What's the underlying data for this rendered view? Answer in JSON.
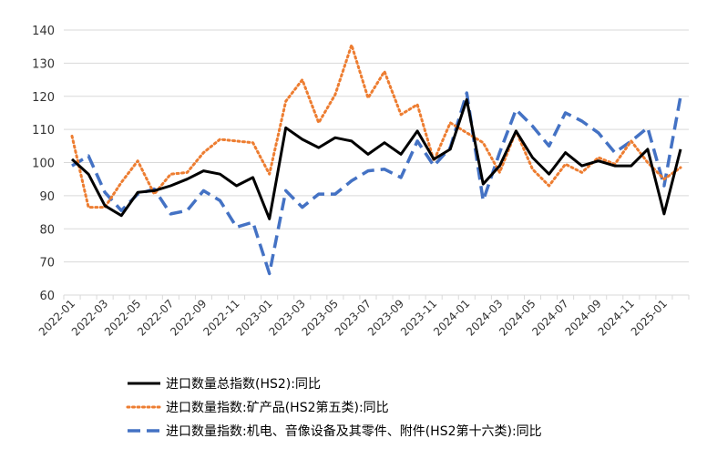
{
  "chart_data": {
    "type": "line",
    "title": "",
    "xlabel": "",
    "ylabel": "",
    "ylim": [
      60,
      140
    ],
    "yticks": [
      60,
      70,
      80,
      90,
      100,
      110,
      120,
      130,
      140
    ],
    "grid": "horizontal",
    "legend_position": "bottom",
    "x": [
      "2022-01",
      "2022-02",
      "2022-03",
      "2022-04",
      "2022-05",
      "2022-06",
      "2022-07",
      "2022-08",
      "2022-09",
      "2022-10",
      "2022-11",
      "2022-12",
      "2023-01",
      "2023-02",
      "2023-03",
      "2023-04",
      "2023-05",
      "2023-06",
      "2023-07",
      "2023-08",
      "2023-09",
      "2023-10",
      "2023-11",
      "2023-12",
      "2024-01",
      "2024-02",
      "2024-03",
      "2024-04",
      "2024-05",
      "2024-06",
      "2024-07",
      "2024-08",
      "2024-09",
      "2024-10",
      "2024-11",
      "2024-12",
      "2025-01",
      "2025-02"
    ],
    "xtick_labels": [
      "2022-01",
      "2022-03",
      "2022-05",
      "2022-07",
      "2022-09",
      "2022-11",
      "2023-01",
      "2023-03",
      "2023-05",
      "2023-07",
      "2023-09",
      "2023-11",
      "2024-01",
      "2024-03",
      "2024-05",
      "2024-07",
      "2024-09",
      "2024-11",
      "2025-01"
    ],
    "series": [
      {
        "name": "进口数量总指数(HS2):同比",
        "color": "#000000",
        "style": "solid",
        "values": [
          101,
          96.5,
          87,
          84,
          91,
          91.5,
          93,
          95,
          97.5,
          96.5,
          93,
          95.5,
          83,
          110.5,
          107,
          104.5,
          107.5,
          106.5,
          102.5,
          106,
          102.5,
          109.5,
          101,
          104,
          119,
          93.5,
          99,
          109.5,
          101.5,
          96.5,
          103,
          99,
          100.5,
          99,
          99,
          104,
          84.5,
          104
        ]
      },
      {
        "name": "进口数量指数:矿产品(HS2第五类):同比",
        "color": "#ed7d31",
        "style": "dotted",
        "values": [
          108,
          86.5,
          86.5,
          94,
          100.5,
          90.5,
          96.5,
          97,
          103,
          107,
          106.5,
          106,
          96.5,
          118.5,
          125,
          112,
          120.5,
          135.5,
          119.5,
          127.5,
          114.5,
          117.5,
          100.5,
          112,
          109,
          106,
          97,
          109.5,
          98,
          93,
          99.5,
          97,
          101.5,
          99.5,
          106.5,
          100,
          95,
          98.5
        ]
      },
      {
        "name": "进口数量指数:机电、音像设备及其零件、附件(HS2第十六类):同比",
        "color": "#4472c4",
        "style": "dashed",
        "values": [
          99,
          102,
          91,
          85.5,
          90.5,
          92,
          84.5,
          85.5,
          91.5,
          88.5,
          80.5,
          82,
          66.5,
          91.5,
          86.5,
          90.5,
          90.5,
          94.5,
          97.5,
          98,
          95.5,
          106.5,
          99,
          104.5,
          121,
          88.5,
          103,
          116,
          111,
          105,
          115,
          112.5,
          109,
          103,
          106.5,
          110.5,
          93,
          120
        ]
      }
    ]
  }
}
